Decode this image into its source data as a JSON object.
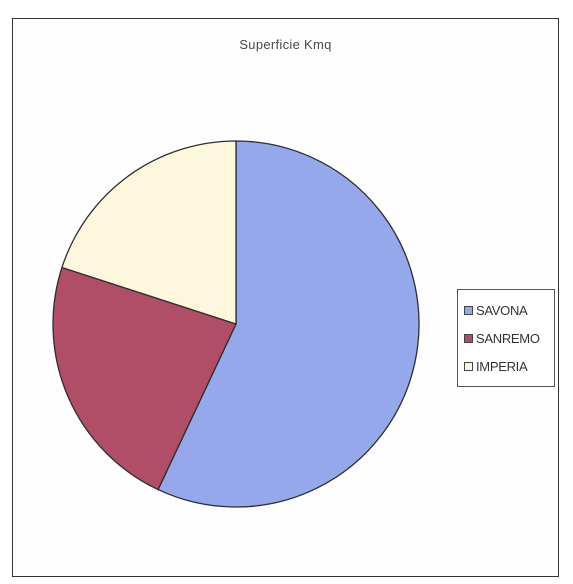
{
  "chart_data": {
    "type": "pie",
    "title": "Superficie Kmq",
    "categories": [
      "SAVONA",
      "SANREMO",
      "IMPERIA"
    ],
    "values": [
      57,
      23,
      20
    ],
    "colors": [
      "#96a8ec",
      "#b04d67",
      "#fdf8dd"
    ],
    "legend_position": "right"
  }
}
